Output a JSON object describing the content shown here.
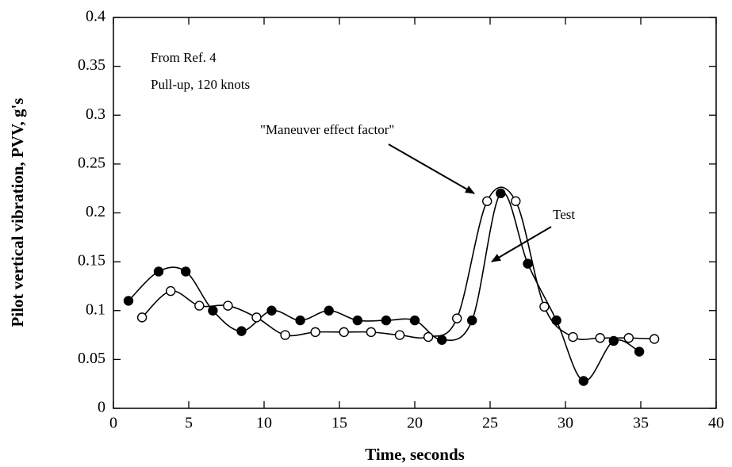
{
  "chart_data": {
    "type": "line",
    "xlabel": "Time,  seconds",
    "ylabel": "Pilot  vertical  vibration,  PVV,  g's",
    "annotations": [
      "From Ref. 4",
      "Pull-up, 120 knots"
    ],
    "xlim": [
      0,
      40
    ],
    "xticks": [
      0,
      5,
      10,
      15,
      20,
      25,
      30,
      35,
      40
    ],
    "ylim": [
      0,
      0.4
    ],
    "yticks": [
      0,
      0.05,
      0.1,
      0.15,
      0.2,
      0.25,
      0.3,
      0.35,
      0.4
    ],
    "series": [
      {
        "name": "Test",
        "color": "#000000",
        "marker": "filled",
        "x": [
          1,
          3,
          4.8,
          6.6,
          8.5,
          10.5,
          12.4,
          14.3,
          16.2,
          18.1,
          20,
          21.8,
          23.8,
          25.7,
          27.5,
          29.4,
          31.2,
          33.2,
          34.9
        ],
        "values": [
          0.11,
          0.14,
          0.14,
          0.1,
          0.079,
          0.1,
          0.09,
          0.1,
          0.09,
          0.09,
          0.09,
          0.07,
          0.09,
          0.22,
          0.148,
          0.09,
          0.028,
          0.069,
          0.058
        ]
      },
      {
        "name": "\"Maneuver effect factor\"",
        "color": "#000000",
        "marker": "open",
        "x": [
          1.9,
          3.8,
          5.7,
          7.6,
          9.5,
          11.4,
          13.4,
          15.3,
          17.1,
          19,
          20.9,
          22.8,
          24.8,
          26.7,
          28.6,
          30.5,
          32.3,
          34.2,
          35.9
        ],
        "values": [
          0.093,
          0.12,
          0.105,
          0.105,
          0.093,
          0.075,
          0.078,
          0.078,
          0.078,
          0.075,
          0.073,
          0.092,
          0.212,
          0.212,
          0.104,
          0.073,
          0.072,
          0.072,
          0.071
        ]
      }
    ]
  }
}
